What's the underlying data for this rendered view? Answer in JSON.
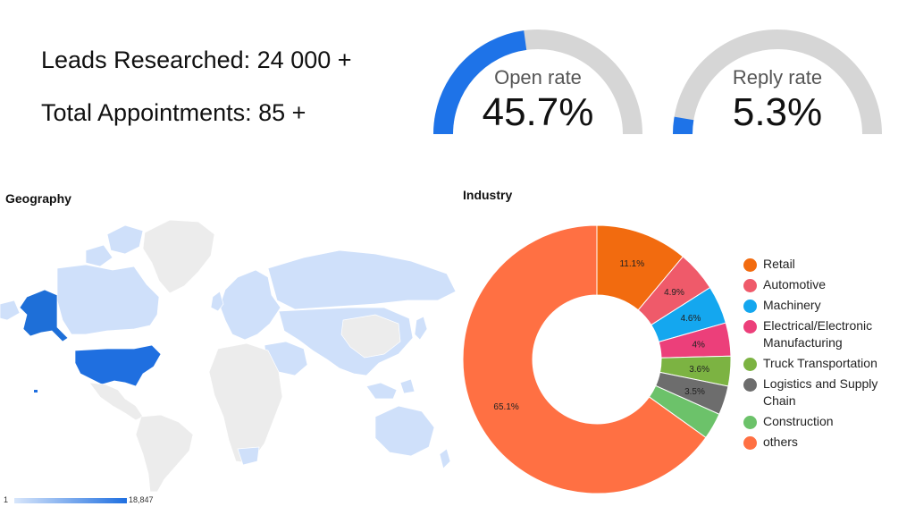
{
  "stats": {
    "leads": "Leads Researched: 24 000 +",
    "appointments": "Total Appointments: 85 +"
  },
  "colors": {
    "gauge_fill": "#1e73e8",
    "gauge_track": "#d6d6d6"
  },
  "chart_data": [
    {
      "type": "gauge",
      "label": "Open rate",
      "value": 45.7,
      "display": "45.7%",
      "max": 100
    },
    {
      "type": "gauge",
      "label": "Reply rate",
      "value": 5.3,
      "display": "5.3%",
      "max": 100
    },
    {
      "type": "choropleth",
      "title": "Geography",
      "scale_min": "1",
      "scale_max": "18,847",
      "colors": {
        "low": "#d8e6fb",
        "high": "#1f6fe0",
        "none": "#ececec"
      }
    },
    {
      "type": "pie",
      "title": "Industry",
      "categories": [
        "Retail",
        "Automotive",
        "Machinery",
        "Electrical/Electronic Manufacturing",
        "Truck Transportation",
        "Logistics and Supply Chain",
        "Construction",
        "others"
      ],
      "values": [
        11.1,
        4.9,
        4.6,
        4.0,
        3.6,
        3.5,
        3.2,
        65.1
      ],
      "labels": [
        "11.1%",
        "4.9%",
        "4.6%",
        "4%",
        "3.6%",
        "3.5%",
        "",
        "65.1%"
      ],
      "colors": [
        "#f26b0f",
        "#ef5a6a",
        "#14a7ef",
        "#ec3f7a",
        "#7cb342",
        "#6d6d6d",
        "#6cc26a",
        "#ff7043"
      ],
      "legend": "right"
    }
  ]
}
